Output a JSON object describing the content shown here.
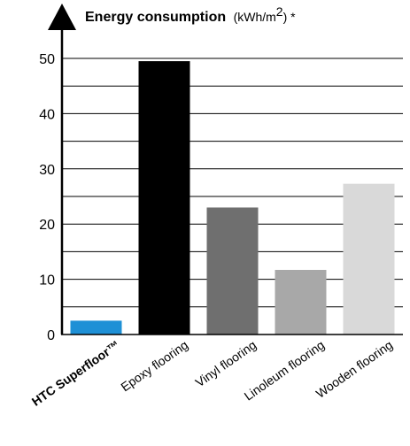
{
  "chart_data": {
    "type": "bar",
    "title": "Energy consumption",
    "unit_prefix": "(kWh/m",
    "unit_sup": "2",
    "unit_suffix": ") *",
    "categories": [
      "HTC Superfloor™",
      "Epoxy flooring",
      "Vinyl flooring",
      "Linoleum flooring",
      "Wooden flooring"
    ],
    "values": [
      2.5,
      49.5,
      23,
      11.7,
      27.3
    ],
    "colors": [
      "#1e90d6",
      "#000000",
      "#6f6f6f",
      "#a8a8a8",
      "#d9d9d9"
    ],
    "highlighted_category": "HTC Superfloor™",
    "ylim": [
      0,
      50
    ],
    "yticks": [
      0,
      10,
      20,
      30,
      40,
      50
    ],
    "grid": true
  }
}
